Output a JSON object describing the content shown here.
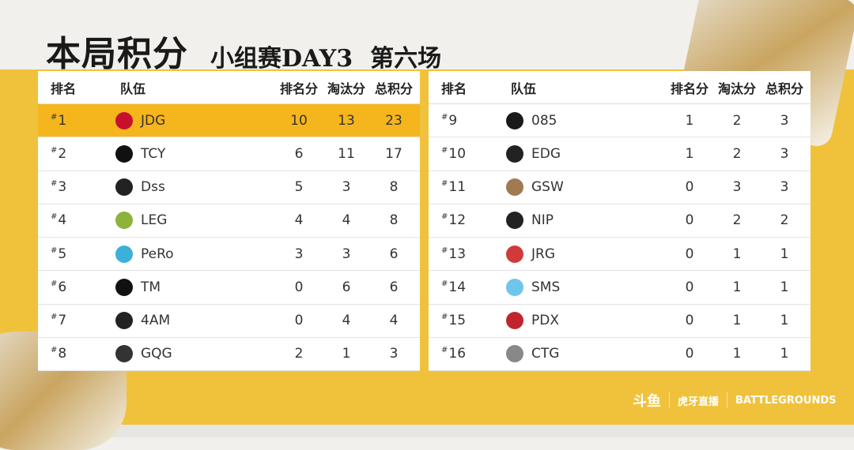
{
  "title": {
    "main": "本局积分",
    "sub": "小组赛DAY3",
    "match": "第六场"
  },
  "headers": {
    "rank": "排名",
    "team": "队伍",
    "placement": "排名分",
    "kills": "淘汰分",
    "total": "总积分"
  },
  "highlight_color": "#f5b51c",
  "left": [
    {
      "rank": "1",
      "team": "JDG",
      "placement": "10",
      "kills": "13",
      "total": "23",
      "logo": "#c8102e"
    },
    {
      "rank": "2",
      "team": "TCY",
      "placement": "6",
      "kills": "11",
      "total": "17",
      "logo": "#111111"
    },
    {
      "rank": "3",
      "team": "Dss",
      "placement": "5",
      "kills": "3",
      "total": "8",
      "logo": "#222222"
    },
    {
      "rank": "4",
      "team": "LEG",
      "placement": "4",
      "kills": "4",
      "total": "8",
      "logo": "#8db33a"
    },
    {
      "rank": "5",
      "team": "PeRo",
      "placement": "3",
      "kills": "3",
      "total": "6",
      "logo": "#3bb0d8"
    },
    {
      "rank": "6",
      "team": "TM",
      "placement": "0",
      "kills": "6",
      "total": "6",
      "logo": "#111111"
    },
    {
      "rank": "7",
      "team": "4AM",
      "placement": "0",
      "kills": "4",
      "total": "4",
      "logo": "#222222"
    },
    {
      "rank": "8",
      "team": "GQG",
      "placement": "2",
      "kills": "1",
      "total": "3",
      "logo": "#333333"
    }
  ],
  "right": [
    {
      "rank": "9",
      "team": "085",
      "placement": "1",
      "kills": "2",
      "total": "3",
      "logo": "#1a1a1a"
    },
    {
      "rank": "10",
      "team": "EDG",
      "placement": "1",
      "kills": "2",
      "total": "3",
      "logo": "#222222"
    },
    {
      "rank": "11",
      "team": "GSW",
      "placement": "0",
      "kills": "3",
      "total": "3",
      "logo": "#a07a50"
    },
    {
      "rank": "12",
      "team": "NIP",
      "placement": "0",
      "kills": "2",
      "total": "2",
      "logo": "#222222"
    },
    {
      "rank": "13",
      "team": "JRG",
      "placement": "0",
      "kills": "1",
      "total": "1",
      "logo": "#d23a3a"
    },
    {
      "rank": "14",
      "team": "SMS",
      "placement": "0",
      "kills": "1",
      "total": "1",
      "logo": "#6ec6ea"
    },
    {
      "rank": "15",
      "team": "PDX",
      "placement": "0",
      "kills": "1",
      "total": "1",
      "logo": "#c0242c"
    },
    {
      "rank": "16",
      "team": "CTG",
      "placement": "0",
      "kills": "1",
      "total": "1",
      "logo": "#888888"
    }
  ],
  "footer": {
    "douyu": "斗鱼",
    "huya": "虎牙直播",
    "pubg": "BATTLEGROUNDS"
  }
}
